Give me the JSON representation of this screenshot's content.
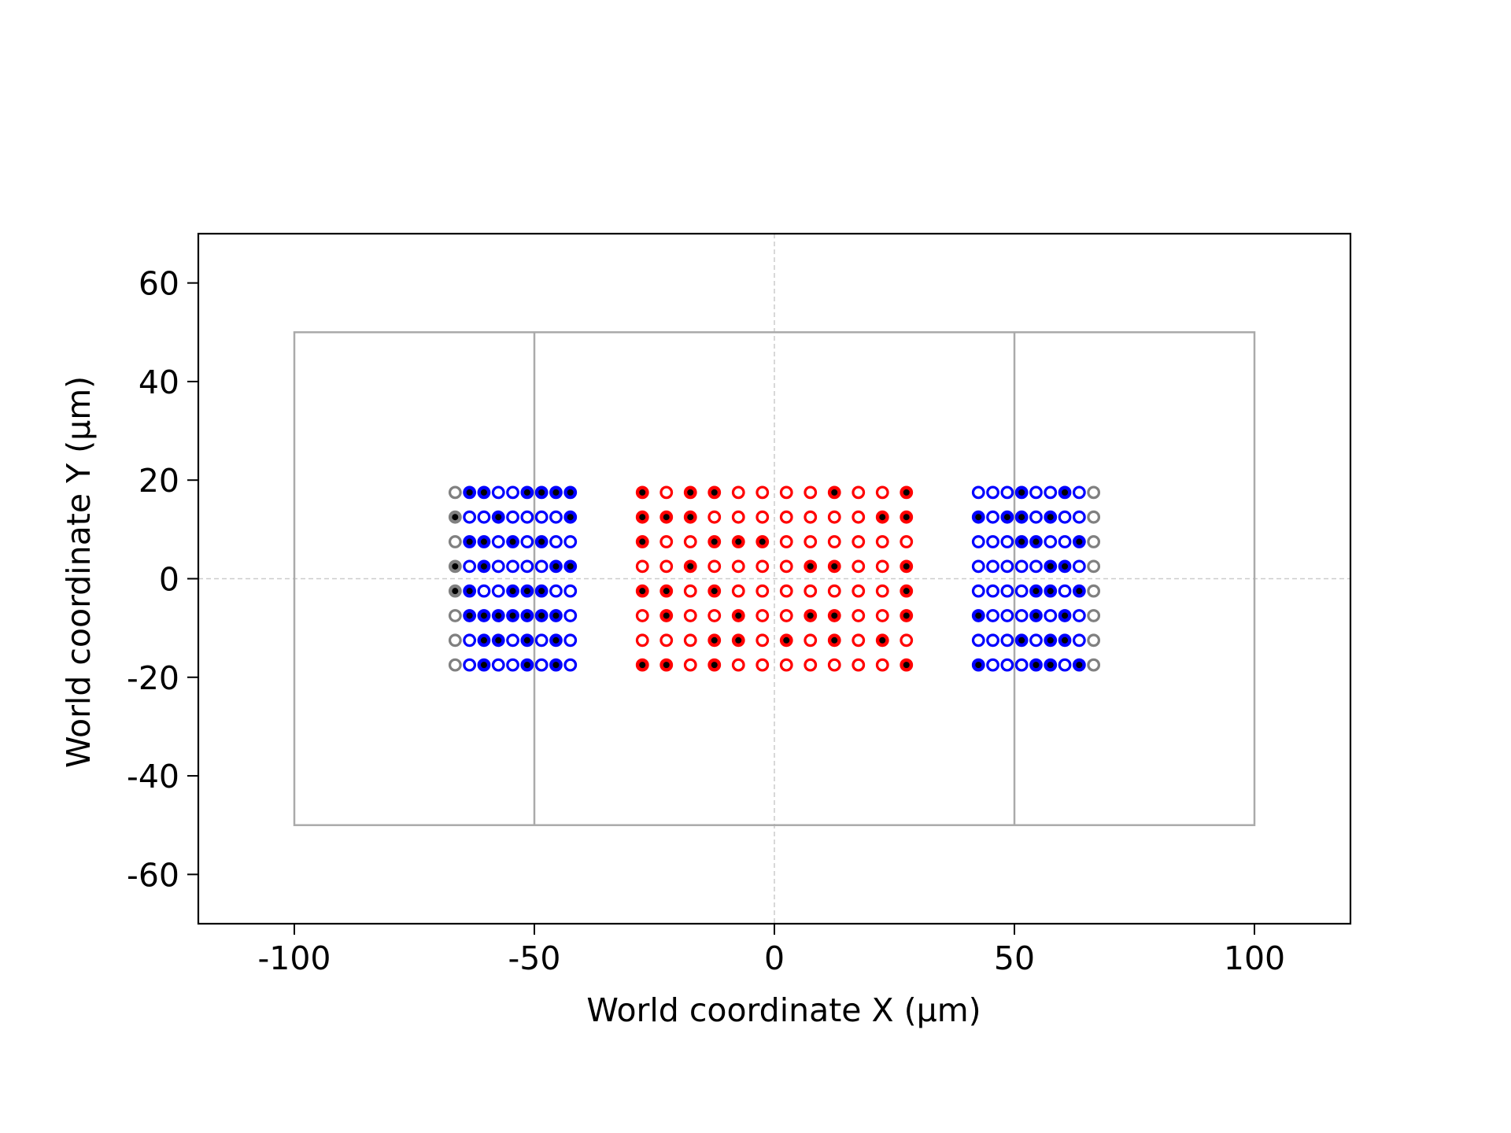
{
  "chart_data": {
    "type": "scatter",
    "title": "",
    "xlabel": "World coordinate X (µm)",
    "ylabel": "World coordinate Y (µm)",
    "xlim": [
      -120,
      120
    ],
    "ylim": [
      -70,
      70
    ],
    "xticks": [
      -100,
      -50,
      0,
      50,
      100
    ],
    "yticks": [
      -60,
      -40,
      -20,
      0,
      20,
      40,
      60
    ],
    "xtick_labels": [
      "-100",
      "-50",
      "0",
      "50",
      "100"
    ],
    "ytick_labels": [
      "-60",
      "-40",
      "-20",
      "0",
      "20",
      "40",
      "60"
    ],
    "grid": "dashed lines at x=0 and y=0",
    "outline": {
      "x": [
        -100,
        100
      ],
      "y": [
        -50,
        50
      ],
      "dividers_x": [
        -50,
        50
      ],
      "color": "#aaaaaa"
    },
    "rows_y": [
      17.5,
      12.5,
      7.5,
      2.5,
      -2.5,
      -7.5,
      -12.5,
      -17.5
    ],
    "groups": [
      {
        "color": "#808080",
        "x": [
          -66.5
        ],
        "filled": [
          [
            0
          ],
          [
            1
          ],
          [
            0
          ],
          [
            1
          ],
          [
            1
          ],
          [
            0
          ],
          [
            0
          ],
          [
            0
          ]
        ]
      },
      {
        "color": "#0000ff",
        "x": [
          -63.5,
          -60.5,
          -57.5,
          -54.5,
          -51.5,
          -48.5,
          -45.5,
          -42.5
        ],
        "filled": [
          [
            1,
            1,
            0,
            0,
            1,
            1,
            1,
            1
          ],
          [
            0,
            0,
            1,
            0,
            0,
            0,
            0,
            1
          ],
          [
            1,
            1,
            0,
            1,
            0,
            1,
            0,
            0
          ],
          [
            0,
            1,
            0,
            0,
            0,
            0,
            1,
            1
          ],
          [
            1,
            0,
            0,
            1,
            1,
            1,
            0,
            0
          ],
          [
            1,
            1,
            1,
            1,
            1,
            1,
            1,
            0
          ],
          [
            0,
            1,
            1,
            0,
            1,
            0,
            1,
            0
          ],
          [
            0,
            1,
            0,
            0,
            1,
            0,
            1,
            0
          ]
        ]
      },
      {
        "color": "#ff0000",
        "x": [
          -27.5,
          -22.5,
          -17.5,
          -12.5,
          -7.5,
          -2.5,
          2.5,
          7.5,
          12.5,
          17.5,
          22.5,
          27.5
        ],
        "filled": [
          [
            1,
            0,
            1,
            1,
            0,
            0,
            0,
            0,
            1,
            0,
            0,
            1
          ],
          [
            1,
            1,
            1,
            0,
            0,
            0,
            0,
            0,
            0,
            0,
            1,
            1
          ],
          [
            1,
            0,
            0,
            1,
            1,
            1,
            0,
            0,
            0,
            0,
            0,
            0
          ],
          [
            0,
            0,
            1,
            0,
            0,
            0,
            0,
            1,
            1,
            0,
            0,
            1
          ],
          [
            1,
            1,
            0,
            1,
            0,
            0,
            0,
            0,
            0,
            0,
            0,
            1
          ],
          [
            0,
            1,
            0,
            0,
            1,
            0,
            0,
            1,
            1,
            0,
            0,
            1
          ],
          [
            0,
            0,
            0,
            1,
            1,
            0,
            1,
            0,
            1,
            0,
            1,
            0
          ],
          [
            1,
            1,
            0,
            1,
            0,
            0,
            0,
            0,
            0,
            0,
            0,
            1
          ]
        ]
      },
      {
        "color": "#0000ff",
        "x": [
          42.5,
          45.5,
          48.5,
          51.5,
          54.5,
          57.5,
          60.5,
          63.5
        ],
        "filled": [
          [
            0,
            0,
            0,
            1,
            0,
            0,
            1,
            0
          ],
          [
            1,
            0,
            1,
            1,
            0,
            1,
            0,
            0
          ],
          [
            0,
            0,
            0,
            1,
            1,
            0,
            0,
            1
          ],
          [
            0,
            0,
            0,
            0,
            0,
            1,
            1,
            0
          ],
          [
            0,
            0,
            0,
            0,
            1,
            1,
            0,
            1
          ],
          [
            1,
            0,
            0,
            0,
            1,
            0,
            1,
            0
          ],
          [
            0,
            0,
            0,
            1,
            0,
            1,
            1,
            0
          ],
          [
            1,
            0,
            0,
            0,
            1,
            1,
            0,
            1
          ]
        ]
      },
      {
        "color": "#808080",
        "x": [
          66.5
        ],
        "filled": [
          [
            0
          ],
          [
            0
          ],
          [
            0
          ],
          [
            0
          ],
          [
            0
          ],
          [
            0
          ],
          [
            0
          ],
          [
            0
          ]
        ]
      }
    ],
    "filled_marker_color": "#000000"
  }
}
